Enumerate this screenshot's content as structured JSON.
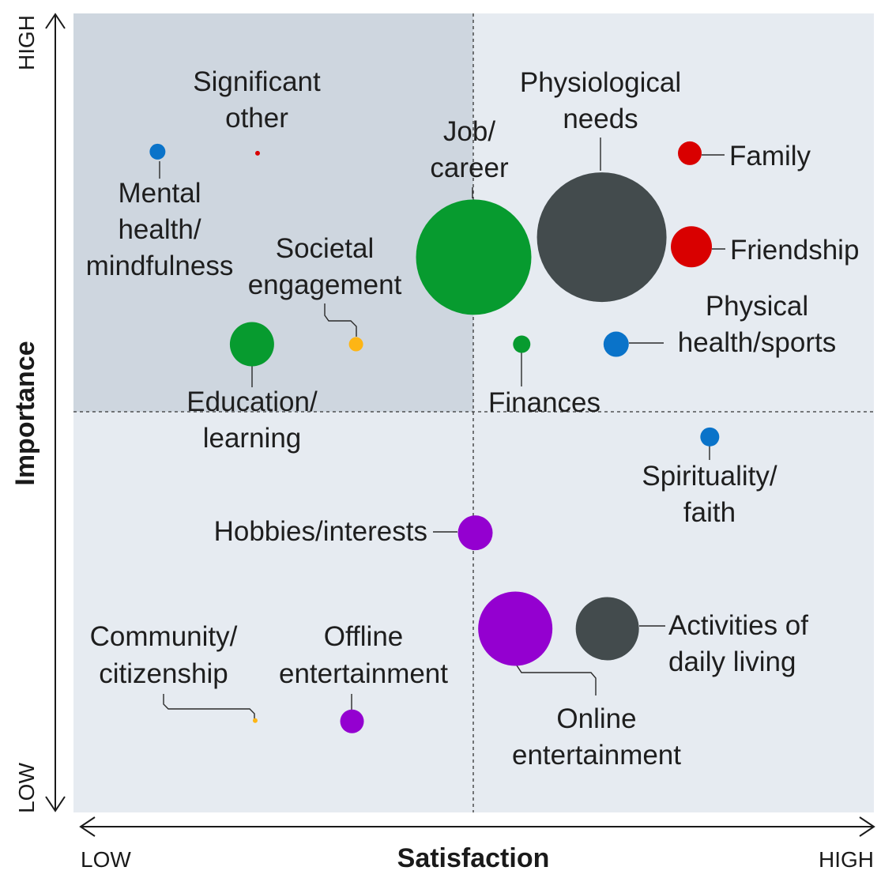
{
  "chart_data": {
    "type": "scatter",
    "xlabel": "Satisfaction",
    "ylabel": "Importance",
    "x_low_label": "LOW",
    "x_high_label": "HIGH",
    "y_low_label": "LOW",
    "y_high_label": "HIGH",
    "xlim": [
      0,
      100
    ],
    "ylim": [
      0,
      100
    ],
    "quadrant_split": {
      "x": 50,
      "y": 50
    },
    "colors": {
      "background": "#e6ebf1",
      "highlight_quadrant": "#ced6df",
      "green": "#079b2f",
      "dark": "#434b4d",
      "red": "#d90000",
      "blue": "#0a73c9",
      "purple": "#9400d0",
      "orange": "#fdb515"
    },
    "points": [
      {
        "name": "Significant other",
        "label_lines": [
          "Significant",
          "other"
        ],
        "x": 23,
        "y": 82.5,
        "size": 3,
        "color": "red"
      },
      {
        "name": "Mental health/mindfulness",
        "label_lines": [
          "Mental",
          "health/",
          "mindfulness"
        ],
        "x": 10.5,
        "y": 82.7,
        "size": 10,
        "color": "blue"
      },
      {
        "name": "Job/career",
        "label_lines": [
          "Job/",
          "career"
        ],
        "x": 50,
        "y": 69.5,
        "size": 73,
        "color": "green"
      },
      {
        "name": "Physiological needs",
        "label_lines": [
          "Physiological",
          "needs"
        ],
        "x": 66,
        "y": 72,
        "size": 82,
        "color": "dark"
      },
      {
        "name": "Family",
        "label_lines": [
          "Family"
        ],
        "x": 77,
        "y": 82.5,
        "size": 15,
        "color": "red"
      },
      {
        "name": "Friendship",
        "label_lines": [
          "Friendship"
        ],
        "x": 77.2,
        "y": 70.8,
        "size": 26,
        "color": "red"
      },
      {
        "name": "Societal engagement",
        "label_lines": [
          "Societal",
          "engagement"
        ],
        "x": 35.3,
        "y": 58.6,
        "size": 9,
        "color": "orange"
      },
      {
        "name": "Education/learning",
        "label_lines": [
          "Education/",
          "learning"
        ],
        "x": 22.3,
        "y": 58.6,
        "size": 28,
        "color": "green"
      },
      {
        "name": "Finances",
        "label_lines": [
          "Finances"
        ],
        "x": 56,
        "y": 58.6,
        "size": 11,
        "color": "green"
      },
      {
        "name": "Physical health/sports",
        "label_lines": [
          "Physical",
          "health/sports"
        ],
        "x": 67.8,
        "y": 58.6,
        "size": 16,
        "color": "blue"
      },
      {
        "name": "Spirituality/faith",
        "label_lines": [
          "Spirituality/",
          "faith"
        ],
        "x": 79.5,
        "y": 47,
        "size": 12,
        "color": "blue"
      },
      {
        "name": "Hobbies/interests",
        "label_lines": [
          "Hobbies/interests"
        ],
        "x": 50.2,
        "y": 35,
        "size": 22,
        "color": "purple"
      },
      {
        "name": "Online entertainment",
        "label_lines": [
          "Online",
          "entertainment"
        ],
        "x": 55.2,
        "y": 23,
        "size": 47,
        "color": "purple"
      },
      {
        "name": "Activities of daily living",
        "label_lines": [
          "Activities of",
          "daily living"
        ],
        "x": 66.7,
        "y": 23,
        "size": 40,
        "color": "dark"
      },
      {
        "name": "Community/citizenship",
        "label_lines": [
          "Community/",
          "citizenship"
        ],
        "x": 22.7,
        "y": 11.5,
        "size": 3,
        "color": "orange"
      },
      {
        "name": "Offline entertainment",
        "label_lines": [
          "Offline",
          "entertainment"
        ],
        "x": 34.8,
        "y": 11.4,
        "size": 15,
        "color": "purple"
      }
    ]
  }
}
